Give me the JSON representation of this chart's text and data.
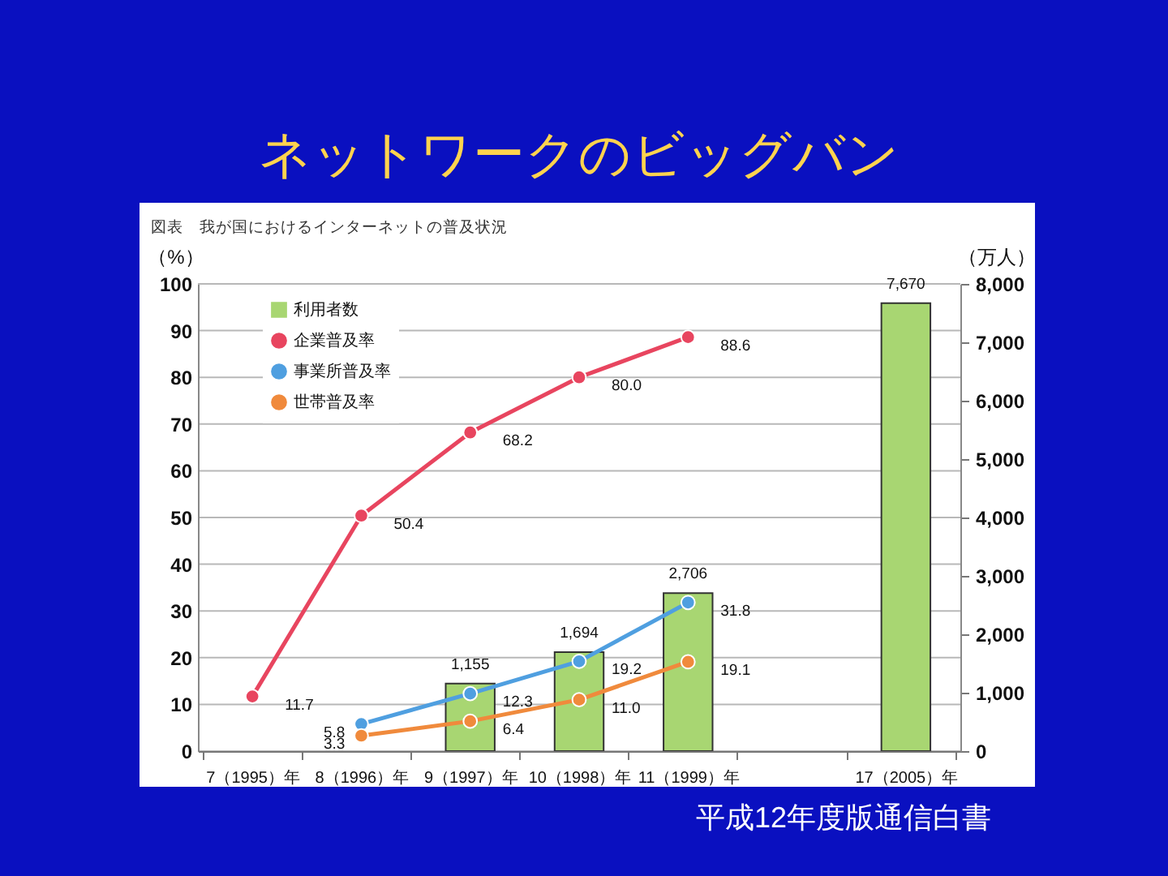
{
  "chart_data": {
    "type": "bar",
    "title": "ネットワークのビッグバン",
    "subtitle": "図表　我が国におけるインターネットの普及状況",
    "ylabel": "（%）",
    "y2label": "（万人）",
    "categories": [
      "7（1995）年",
      "8（1996）年",
      "9（1997）年",
      "10（1998）年",
      "11（1999）年",
      null,
      "17（2005）年"
    ],
    "series": [
      {
        "name": "利用者数",
        "axis": "y2",
        "color": "#a8d672",
        "values": [
          null,
          null,
          1155,
          1694,
          2706,
          null,
          7670
        ],
        "value_labels": [
          null,
          null,
          "1,155",
          "1,694",
          "2,706",
          null,
          "7,670"
        ]
      },
      {
        "name": "企業普及率",
        "type": "line",
        "color": "#e8455f",
        "values": [
          11.7,
          50.4,
          68.2,
          80.0,
          88.6,
          null,
          null
        ],
        "value_labels": [
          "11.7",
          "50.4",
          "68.2",
          "80.0",
          "88.6",
          null,
          null
        ]
      },
      {
        "name": "事業所普及率",
        "type": "line",
        "color": "#4f9fe0",
        "values": [
          null,
          5.8,
          12.3,
          19.2,
          31.8,
          null,
          null
        ],
        "value_labels": [
          null,
          "5.8",
          "12.3",
          "19.2",
          "31.8",
          null,
          null
        ]
      },
      {
        "name": "世帯普及率",
        "type": "line",
        "color": "#f08a3c",
        "values": [
          null,
          3.3,
          6.4,
          11.0,
          19.1,
          null,
          null
        ],
        "value_labels": [
          null,
          "3.3",
          "6.4",
          "11.0",
          "19.1",
          null,
          null
        ]
      }
    ],
    "ylim": [
      0,
      100
    ],
    "yticks": [
      0,
      10,
      20,
      30,
      40,
      50,
      60,
      70,
      80,
      90,
      100
    ],
    "y2lim": [
      0,
      8000
    ],
    "y2ticks": [
      0,
      {
        "value": 1000,
        "label": "1,000"
      },
      {
        "value": 2000,
        "label": "2,000"
      },
      {
        "value": 3000,
        "label": "3,000"
      },
      {
        "value": 4000,
        "label": "4,000"
      },
      {
        "value": 5000,
        "label": "5,000"
      },
      {
        "value": 6000,
        "label": "6,000"
      },
      {
        "value": 7000,
        "label": "7,000"
      },
      {
        "value": 8000,
        "label": "8,000"
      }
    ],
    "grid": "y",
    "legend": "top left",
    "marker": "circle",
    "line_style": "solid",
    "annotations": [
      "平成12年度版通信白書"
    ]
  }
}
